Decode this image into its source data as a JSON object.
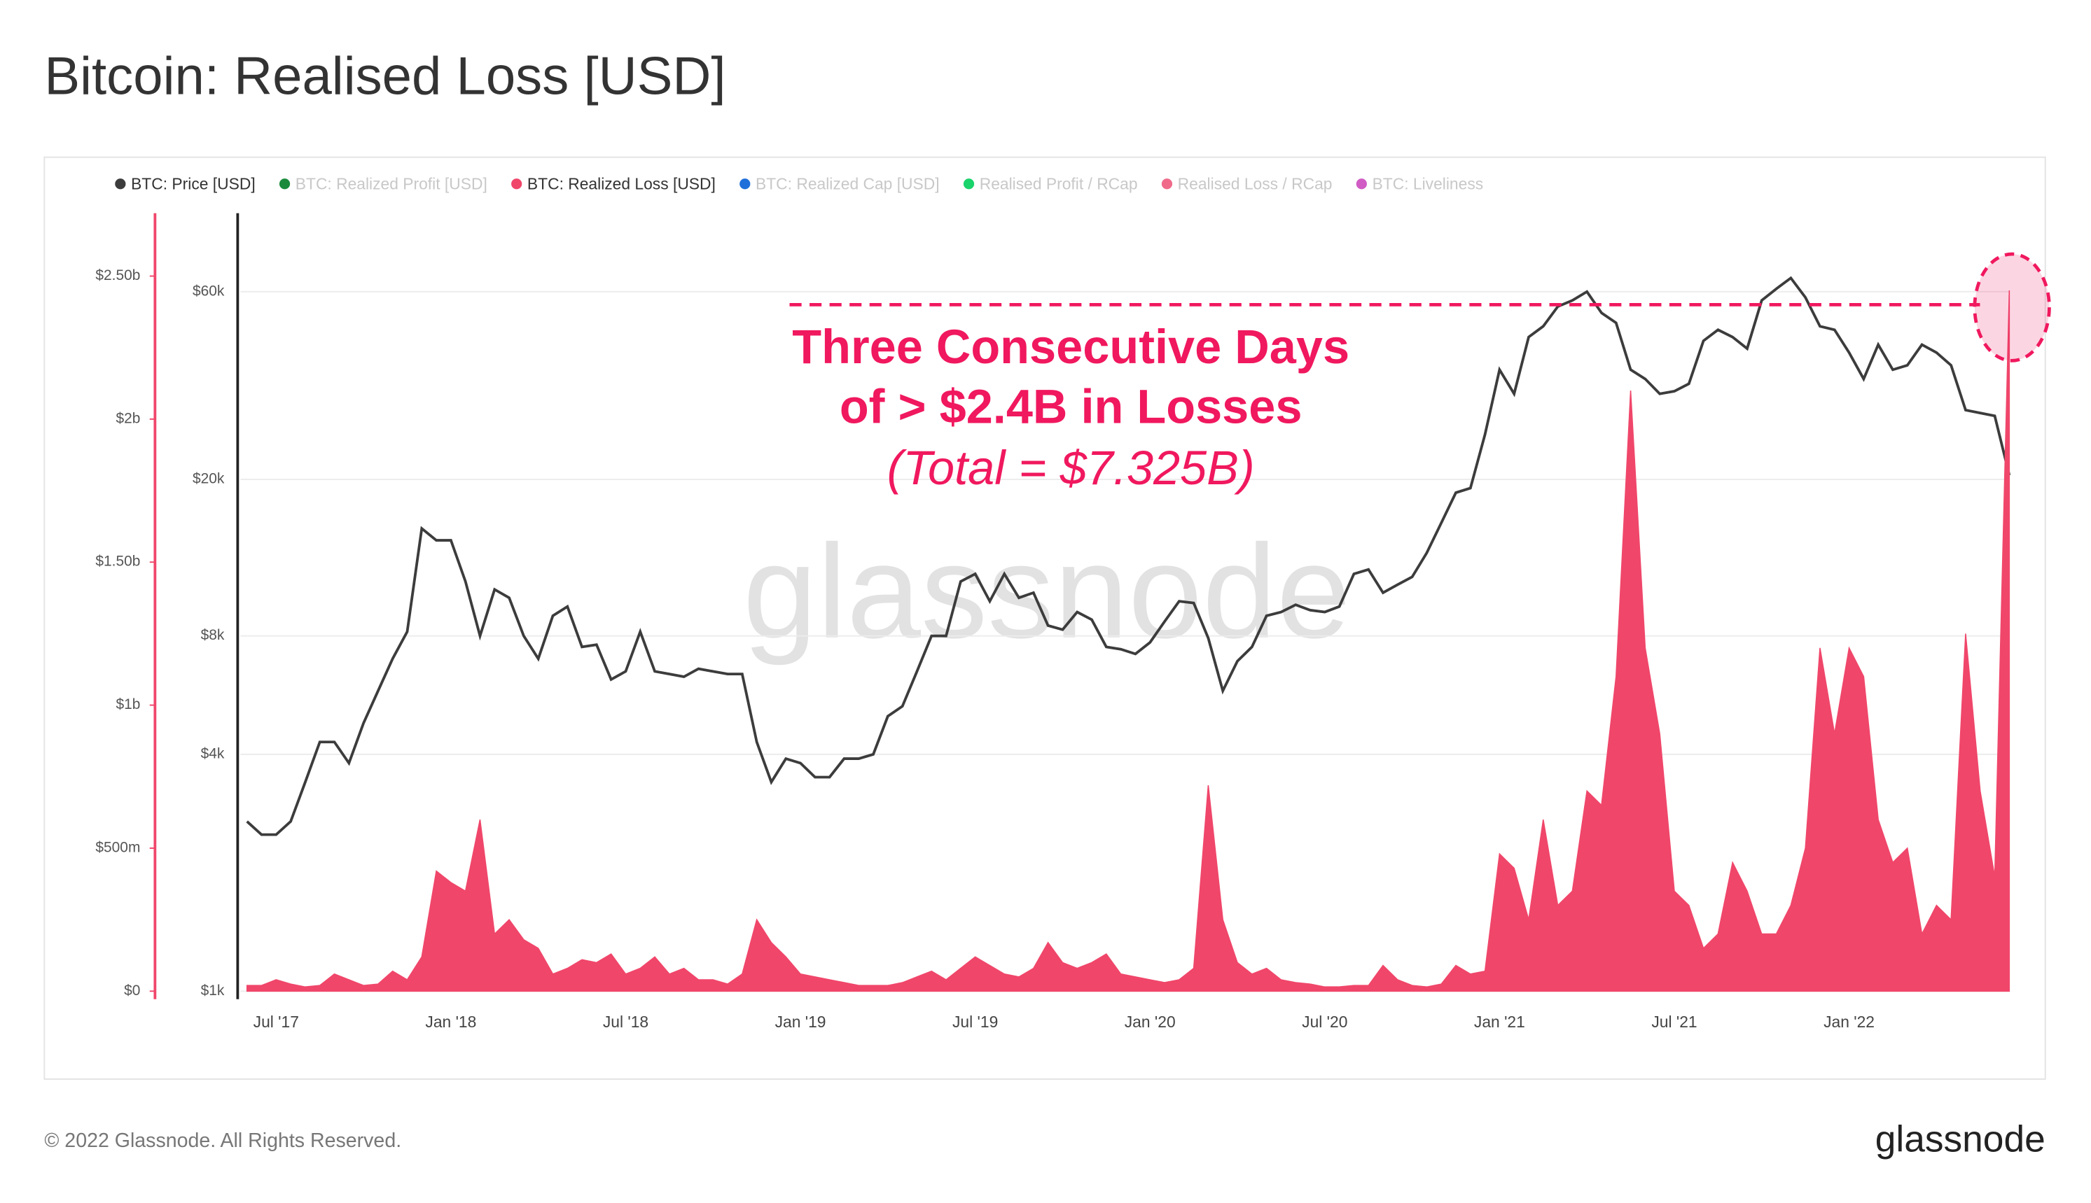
{
  "chart_data": {
    "type": "combo",
    "title": "Bitcoin: Realised Loss [USD]",
    "watermark": "glassnode",
    "footer": "© 2022 Glassnode. All Rights Reserved.",
    "logo": "glassnode",
    "annotation": {
      "lines": [
        "Three Consecutive Days",
        "of > $2.4B in Losses"
      ],
      "note": "(Total = $7.325B)",
      "threshold": 2400000000,
      "color": "#f0185e"
    },
    "categories": [
      null,
      null,
      "Jul '17",
      null,
      null,
      null,
      null,
      null,
      null,
      null,
      null,
      null,
      null,
      null,
      "Jan '18",
      null,
      null,
      null,
      null,
      null,
      null,
      null,
      null,
      null,
      null,
      null,
      "Jul '18",
      null,
      null,
      null,
      null,
      null,
      null,
      null,
      null,
      null,
      null,
      null,
      "Jan '19",
      null,
      null,
      null,
      null,
      null,
      null,
      null,
      null,
      null,
      null,
      null,
      "Jul '19",
      null,
      null,
      null,
      null,
      null,
      null,
      null,
      null,
      null,
      null,
      null,
      "Jan '20",
      null,
      null,
      null,
      null,
      null,
      null,
      null,
      null,
      null,
      null,
      null,
      "Jul '20",
      null,
      null,
      null,
      null,
      null,
      null,
      null,
      null,
      null,
      null,
      null,
      "Jan '21",
      null,
      null,
      null,
      null,
      null,
      null,
      null,
      null,
      null,
      null,
      null,
      "Jul '21",
      null,
      null,
      null,
      null,
      null,
      null,
      null,
      null,
      null,
      null,
      null,
      "Jan '22",
      null,
      null,
      null,
      null,
      null,
      null,
      null,
      null,
      null,
      null,
      null
    ],
    "series": [
      {
        "name": "BTC: Price [USD]",
        "color": "#3c3c3c",
        "type": "line",
        "visible": true,
        "values": [
          2700,
          2500,
          2500,
          2700,
          3400,
          4300,
          4300,
          3800,
          4800,
          5800,
          7000,
          8200,
          15000,
          14000,
          14000,
          11000,
          8000,
          10500,
          10000,
          8000,
          7000,
          9000,
          9500,
          7500,
          7600,
          6200,
          6500,
          8200,
          6500,
          6400,
          6300,
          6600,
          6500,
          6400,
          6400,
          4300,
          3400,
          3900,
          3800,
          3500,
          3500,
          3900,
          3900,
          4000,
          5000,
          5300,
          6500,
          8000,
          8000,
          11000,
          11500,
          9800,
          11500,
          10000,
          10300,
          8500,
          8300,
          9200,
          8800,
          7500,
          7400,
          7200,
          7700,
          8700,
          9800,
          9700,
          7900,
          5800,
          6900,
          7500,
          9000,
          9200,
          9600,
          9300,
          9200,
          9500,
          11500,
          11800,
          10300,
          10800,
          11300,
          13000,
          15500,
          18500,
          19000,
          26000,
          38000,
          33000,
          46000,
          49000,
          55000,
          57000,
          60000,
          53000,
          50000,
          38000,
          36000,
          33000,
          33500,
          35000,
          45000,
          48000,
          46000,
          43000,
          57000,
          61000,
          65000,
          58000,
          49000,
          48000,
          42000,
          36000,
          44000,
          38000,
          39000,
          44000,
          42000,
          39000,
          30000,
          29500,
          29000,
          20500
        ]
      },
      {
        "name": "BTC: Realized Profit [USD]",
        "color": "#1a8a3a",
        "visible": false
      },
      {
        "name": "BTC: Realized Loss [USD]",
        "color": "#f0466a",
        "type": "area",
        "axis": "y2",
        "visible": true,
        "values": [
          20000000,
          20000000,
          40000000,
          25000000,
          15000000,
          20000000,
          60000000,
          40000000,
          20000000,
          25000000,
          70000000,
          40000000,
          120000000,
          420000000,
          380000000,
          350000000,
          600000000,
          200000000,
          250000000,
          180000000,
          150000000,
          60000000,
          80000000,
          110000000,
          100000000,
          130000000,
          60000000,
          80000000,
          120000000,
          60000000,
          80000000,
          40000000,
          40000000,
          25000000,
          60000000,
          250000000,
          170000000,
          120000000,
          60000000,
          50000000,
          40000000,
          30000000,
          20000000,
          20000000,
          20000000,
          30000000,
          50000000,
          70000000,
          40000000,
          80000000,
          120000000,
          90000000,
          60000000,
          50000000,
          80000000,
          170000000,
          100000000,
          80000000,
          100000000,
          130000000,
          60000000,
          50000000,
          40000000,
          30000000,
          40000000,
          80000000,
          720000000,
          250000000,
          100000000,
          60000000,
          80000000,
          40000000,
          30000000,
          25000000,
          15000000,
          15000000,
          20000000,
          20000000,
          90000000,
          40000000,
          20000000,
          15000000,
          25000000,
          90000000,
          60000000,
          70000000,
          480000000,
          430000000,
          250000000,
          600000000,
          300000000,
          350000000,
          700000000,
          650000000,
          1100000000,
          2100000000,
          1200000000,
          900000000,
          350000000,
          300000000,
          150000000,
          200000000,
          450000000,
          350000000,
          200000000,
          200000000,
          300000000,
          500000000,
          1200000000,
          900000000,
          1200000000,
          1100000000,
          600000000,
          450000000,
          500000000,
          200000000,
          300000000,
          250000000,
          1250000000,
          700000000,
          400000000,
          2450000000
        ]
      },
      {
        "name": "BTC: Realized Cap [USD]",
        "color": "#1e6fd9",
        "visible": false
      },
      {
        "name": "Realised Profit / RCap",
        "color": "#19d36b",
        "visible": false
      },
      {
        "name": "Realised Loss / RCap",
        "color": "#f06a8a",
        "visible": false
      },
      {
        "name": "BTC: Liveliness",
        "color": "#d05cc4",
        "visible": false
      }
    ],
    "log_scale": true,
    "ylim": [
      1000,
      95000
    ],
    "yticks": [
      {
        "value": 1000,
        "label": "$1k"
      },
      {
        "value": 4000,
        "label": "$4k"
      },
      {
        "value": 8000,
        "label": "$8k"
      },
      {
        "value": 20000,
        "label": "$20k"
      },
      {
        "value": 60000,
        "label": "$60k"
      }
    ],
    "y2lim": [
      0,
      2720000000
    ],
    "y2ticks": [
      {
        "value": 0,
        "label": "$0"
      },
      {
        "value": 500000000,
        "label": "$500m"
      },
      {
        "value": 1000000000,
        "label": "$1b"
      },
      {
        "value": 1500000000,
        "label": "$1.50b"
      },
      {
        "value": 2000000000,
        "label": "$2b"
      },
      {
        "value": 2500000000,
        "label": "$2.50b"
      }
    ],
    "grid": true,
    "legend": "top-left"
  }
}
